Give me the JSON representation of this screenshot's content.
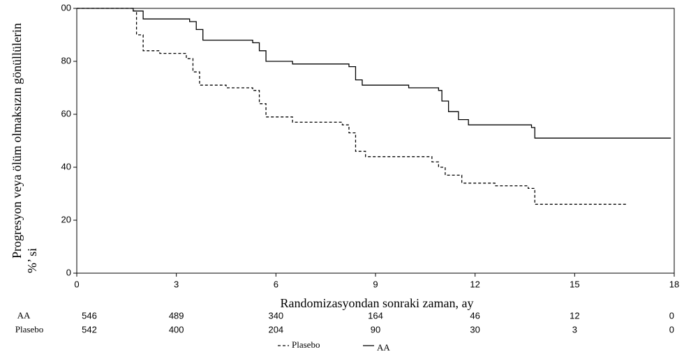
{
  "chart_data": {
    "type": "step",
    "xlabel": "Randomizasyondan sonraki zaman, ay",
    "ylabel": [
      "Progresyon veya ölüm olmaksızın gönüllülerin",
      "%’ si"
    ],
    "xlim": [
      0,
      18
    ],
    "ylim": [
      0,
      100
    ],
    "xticks": [
      0,
      3,
      6,
      9,
      12,
      15,
      18
    ],
    "yticks": [
      0,
      20,
      40,
      60,
      80,
      {
        "value": 100,
        "label": "00"
      }
    ],
    "series": [
      {
        "name": "Plasebo",
        "color": "#000000",
        "dash": true,
        "x": [
          0,
          1.7,
          1.7,
          1.8,
          1.8,
          2.0,
          2.0,
          2.5,
          2.5,
          3.3,
          3.3,
          3.5,
          3.5,
          3.7,
          3.7,
          4.5,
          4.5,
          5.3,
          5.3,
          5.5,
          5.5,
          5.7,
          5.7,
          6.5,
          6.5,
          8.0,
          8.0,
          8.2,
          8.2,
          8.4,
          8.4,
          8.7,
          8.7,
          10.7,
          10.7,
          10.9,
          10.9,
          11.1,
          11.1,
          11.6,
          11.6,
          12.6,
          12.6,
          13.6,
          13.6,
          13.8,
          13.8,
          16.6
        ],
        "values": [
          100,
          100,
          99,
          99,
          90,
          90,
          84,
          84,
          83,
          83,
          81,
          81,
          76,
          76,
          71,
          71,
          70,
          70,
          69,
          69,
          64,
          64,
          59,
          59,
          57,
          57,
          56,
          56,
          53,
          53,
          46,
          46,
          44,
          44,
          42,
          42,
          40,
          40,
          37,
          37,
          34,
          34,
          33,
          33,
          32,
          32,
          26,
          26
        ]
      },
      {
        "name": "AA",
        "color": "#000000",
        "dash": false,
        "x": [
          0,
          1.7,
          1.7,
          2.0,
          2.0,
          3.4,
          3.4,
          3.6,
          3.6,
          3.8,
          3.8,
          5.3,
          5.3,
          5.5,
          5.5,
          5.7,
          5.7,
          6.5,
          6.5,
          8.2,
          8.2,
          8.4,
          8.4,
          8.6,
          8.6,
          10.0,
          10.0,
          10.9,
          10.9,
          11.0,
          11.0,
          11.2,
          11.2,
          11.5,
          11.5,
          11.8,
          11.8,
          13.7,
          13.7,
          13.8,
          13.8,
          17.9
        ],
        "values": [
          100,
          100,
          99,
          99,
          96,
          96,
          95,
          95,
          92,
          92,
          88,
          88,
          87,
          87,
          84,
          84,
          80,
          80,
          79,
          79,
          78,
          78,
          73,
          73,
          71,
          71,
          70,
          70,
          69,
          69,
          65,
          65,
          61,
          61,
          58,
          58,
          56,
          56,
          55,
          55,
          51,
          51
        ]
      }
    ],
    "risk_table": {
      "rows": [
        {
          "name": "AA",
          "values": [
            546,
            489,
            340,
            164,
            46,
            12,
            0
          ]
        },
        {
          "name": "Plasebo",
          "values": [
            542,
            400,
            204,
            90,
            30,
            3,
            0
          ]
        }
      ]
    }
  }
}
